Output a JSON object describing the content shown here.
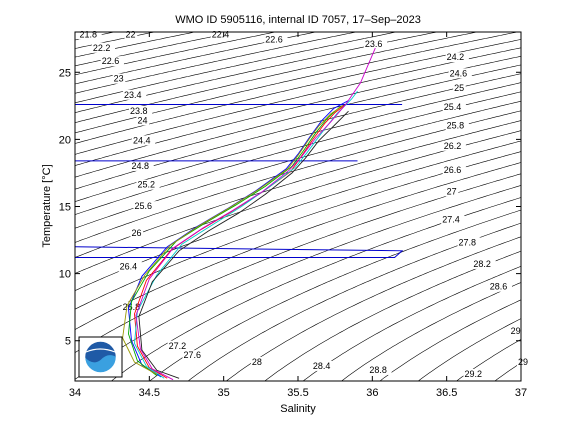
{
  "chart_data": {
    "type": "line",
    "title": "WMO ID 5905116, internal ID 7057, 17–Sep–2023",
    "xlabel": "Salinity",
    "ylabel": "Temperature [°C]",
    "xlim": [
      34,
      37
    ],
    "ylim": [
      2,
      28
    ],
    "xticks": [
      34,
      34.5,
      35,
      35.5,
      36,
      36.5,
      37
    ],
    "xtick_labels": [
      "34",
      "34.5",
      "35",
      "35.5",
      "36",
      "36.5",
      "37"
    ],
    "yticks": [
      5,
      10,
      15,
      20,
      25
    ],
    "ytick_labels": [
      "5",
      "10",
      "15",
      "20",
      "25"
    ],
    "grid": false,
    "logo": "noaa-logo",
    "density_contours": {
      "color": "#000000",
      "labels": [
        {
          "text": "21.8",
          "s": 34.03,
          "t": 27.6
        },
        {
          "text": "22",
          "s": 34.34,
          "t": 27.6
        },
        {
          "text": "22.2",
          "s": 34.12,
          "t": 26.6
        },
        {
          "text": "22.4",
          "s": 34.92,
          "t": 27.6
        },
        {
          "text": "22.6",
          "s": 35.28,
          "t": 27.2
        },
        {
          "text": "22.6",
          "s": 34.18,
          "t": 25.6
        },
        {
          "text": "23",
          "s": 34.26,
          "t": 24.3
        },
        {
          "text": "23.4",
          "s": 34.33,
          "t": 23.1
        },
        {
          "text": "23.6",
          "s": 35.95,
          "t": 26.9
        },
        {
          "text": "23.8",
          "s": 34.37,
          "t": 21.9
        },
        {
          "text": "24",
          "s": 34.42,
          "t": 21.2
        },
        {
          "text": "24.2",
          "s": 36.5,
          "t": 25.9
        },
        {
          "text": "24.4",
          "s": 34.39,
          "t": 19.7
        },
        {
          "text": "24.6",
          "s": 36.52,
          "t": 24.7
        },
        {
          "text": "24.8",
          "s": 34.38,
          "t": 17.8
        },
        {
          "text": "25",
          "s": 36.55,
          "t": 23.6
        },
        {
          "text": "25.2",
          "s": 34.42,
          "t": 16.4
        },
        {
          "text": "25.4",
          "s": 36.48,
          "t": 22.2
        },
        {
          "text": "25.6",
          "s": 34.4,
          "t": 14.8
        },
        {
          "text": "25.8",
          "s": 36.5,
          "t": 20.8
        },
        {
          "text": "26",
          "s": 34.38,
          "t": 12.8
        },
        {
          "text": "26.2",
          "s": 36.48,
          "t": 19.3
        },
        {
          "text": "26.4",
          "s": 34.3,
          "t": 10.3
        },
        {
          "text": "26.6",
          "s": 36.48,
          "t": 17.5
        },
        {
          "text": "26.8",
          "s": 34.32,
          "t": 7.3
        },
        {
          "text": "27",
          "s": 36.5,
          "t": 15.9
        },
        {
          "text": "27.2",
          "s": 34.63,
          "t": 4.4
        },
        {
          "text": "27.4",
          "s": 36.47,
          "t": 13.8
        },
        {
          "text": "27.6",
          "s": 34.73,
          "t": 3.7
        },
        {
          "text": "27.8",
          "s": 36.58,
          "t": 12.1
        },
        {
          "text": "28",
          "s": 35.19,
          "t": 3.2
        },
        {
          "text": "28.2",
          "s": 36.68,
          "t": 10.5
        },
        {
          "text": "28.4",
          "s": 35.6,
          "t": 2.9
        },
        {
          "text": "28.6",
          "s": 36.79,
          "t": 8.8
        },
        {
          "text": "28.8",
          "s": 35.98,
          "t": 2.6
        },
        {
          "text": "29",
          "s": 36.93,
          "t": 5.5
        },
        {
          "text": "29.2",
          "s": 36.62,
          "t": 2.3
        },
        {
          "text": "29",
          "s": 36.98,
          "t": 3.2
        }
      ]
    },
    "series": [
      {
        "color": "#ff0000",
        "s": [
          34.62,
          34.5,
          34.42,
          34.4,
          34.48,
          34.65,
          34.85,
          35.05,
          35.25,
          35.45,
          35.52,
          35.6,
          35.68,
          35.75,
          35.82
        ],
        "t": [
          2.2,
          3.0,
          4.6,
          7.0,
          9.5,
          11.8,
          13.3,
          14.6,
          16.0,
          17.6,
          18.7,
          20.0,
          21.2,
          22.0,
          22.6
        ]
      },
      {
        "color": "#0000ff",
        "s": [
          34.58,
          34.45,
          34.38,
          34.36,
          34.45,
          34.62,
          34.82,
          35.02,
          35.22,
          35.42,
          35.5,
          35.58,
          35.66,
          35.74,
          35.84
        ],
        "t": [
          2.3,
          3.2,
          5.0,
          7.4,
          9.8,
          12.0,
          13.5,
          14.8,
          16.2,
          17.8,
          18.9,
          20.2,
          21.4,
          22.3,
          22.9
        ]
      },
      {
        "color": "#00aa00",
        "s": [
          34.55,
          34.42,
          34.36,
          34.38,
          34.5,
          34.68,
          34.88,
          35.08,
          35.28,
          35.46,
          35.54,
          35.62,
          35.7,
          35.78
        ],
        "t": [
          2.4,
          3.5,
          5.5,
          7.9,
          10.2,
          12.4,
          13.8,
          15.1,
          16.5,
          18.0,
          19.2,
          20.5,
          21.6,
          22.4
        ]
      },
      {
        "color": "#00cccc",
        "s": [
          34.6,
          34.48,
          34.4,
          34.42,
          34.55,
          34.72,
          34.92,
          35.12,
          35.3,
          35.48,
          35.56,
          35.66,
          35.76,
          35.86,
          35.9
        ],
        "t": [
          2.2,
          3.1,
          4.8,
          7.2,
          9.9,
          12.2,
          13.6,
          15.0,
          16.4,
          17.9,
          19.0,
          20.5,
          21.9,
          23.0,
          23.6
        ]
      },
      {
        "color": "#cc00cc",
        "s": [
          34.66,
          34.52,
          34.44,
          34.41,
          34.5,
          34.66,
          34.86,
          35.06,
          35.26,
          35.44,
          35.53,
          35.62,
          35.72,
          35.82,
          35.92,
          36.02
        ],
        "t": [
          2.1,
          2.9,
          4.4,
          6.9,
          9.6,
          11.9,
          13.4,
          14.7,
          16.1,
          17.7,
          18.8,
          20.1,
          21.3,
          22.6,
          24.2,
          26.8
        ]
      },
      {
        "color": "#999900",
        "s": [
          34.55,
          34.4,
          34.32,
          34.35,
          34.47,
          34.64,
          34.84,
          35.04,
          35.24,
          35.43,
          35.5,
          35.58,
          35.64,
          35.72,
          35.8
        ],
        "t": [
          2.5,
          3.4,
          5.2,
          7.6,
          9.9,
          12.1,
          13.6,
          14.9,
          16.3,
          17.8,
          18.8,
          20.1,
          21.0,
          21.9,
          22.5
        ]
      },
      {
        "color": "#202020",
        "s": [
          34.7,
          34.55,
          34.45,
          34.43,
          34.52,
          34.7,
          34.9,
          35.1,
          35.28,
          35.46,
          35.55,
          35.64,
          35.74,
          35.84
        ],
        "t": [
          2.2,
          2.8,
          4.3,
          6.8,
          9.4,
          11.7,
          13.2,
          14.5,
          15.9,
          17.5,
          18.6,
          19.9,
          21.0,
          22.1
        ]
      }
    ],
    "reference_lines": [
      {
        "color": "#0000cc",
        "s": [
          34.0,
          35.9
        ],
        "t": [
          18.4,
          18.4
        ]
      },
      {
        "color": "#0000cc",
        "s": [
          34.0,
          36.2,
          36.15,
          34.0
        ],
        "t": [
          12.0,
          11.7,
          11.2,
          11.2
        ]
      },
      {
        "color": "#0000cc",
        "s": [
          34.0,
          36.2
        ],
        "t": [
          22.6,
          22.6
        ]
      }
    ]
  }
}
